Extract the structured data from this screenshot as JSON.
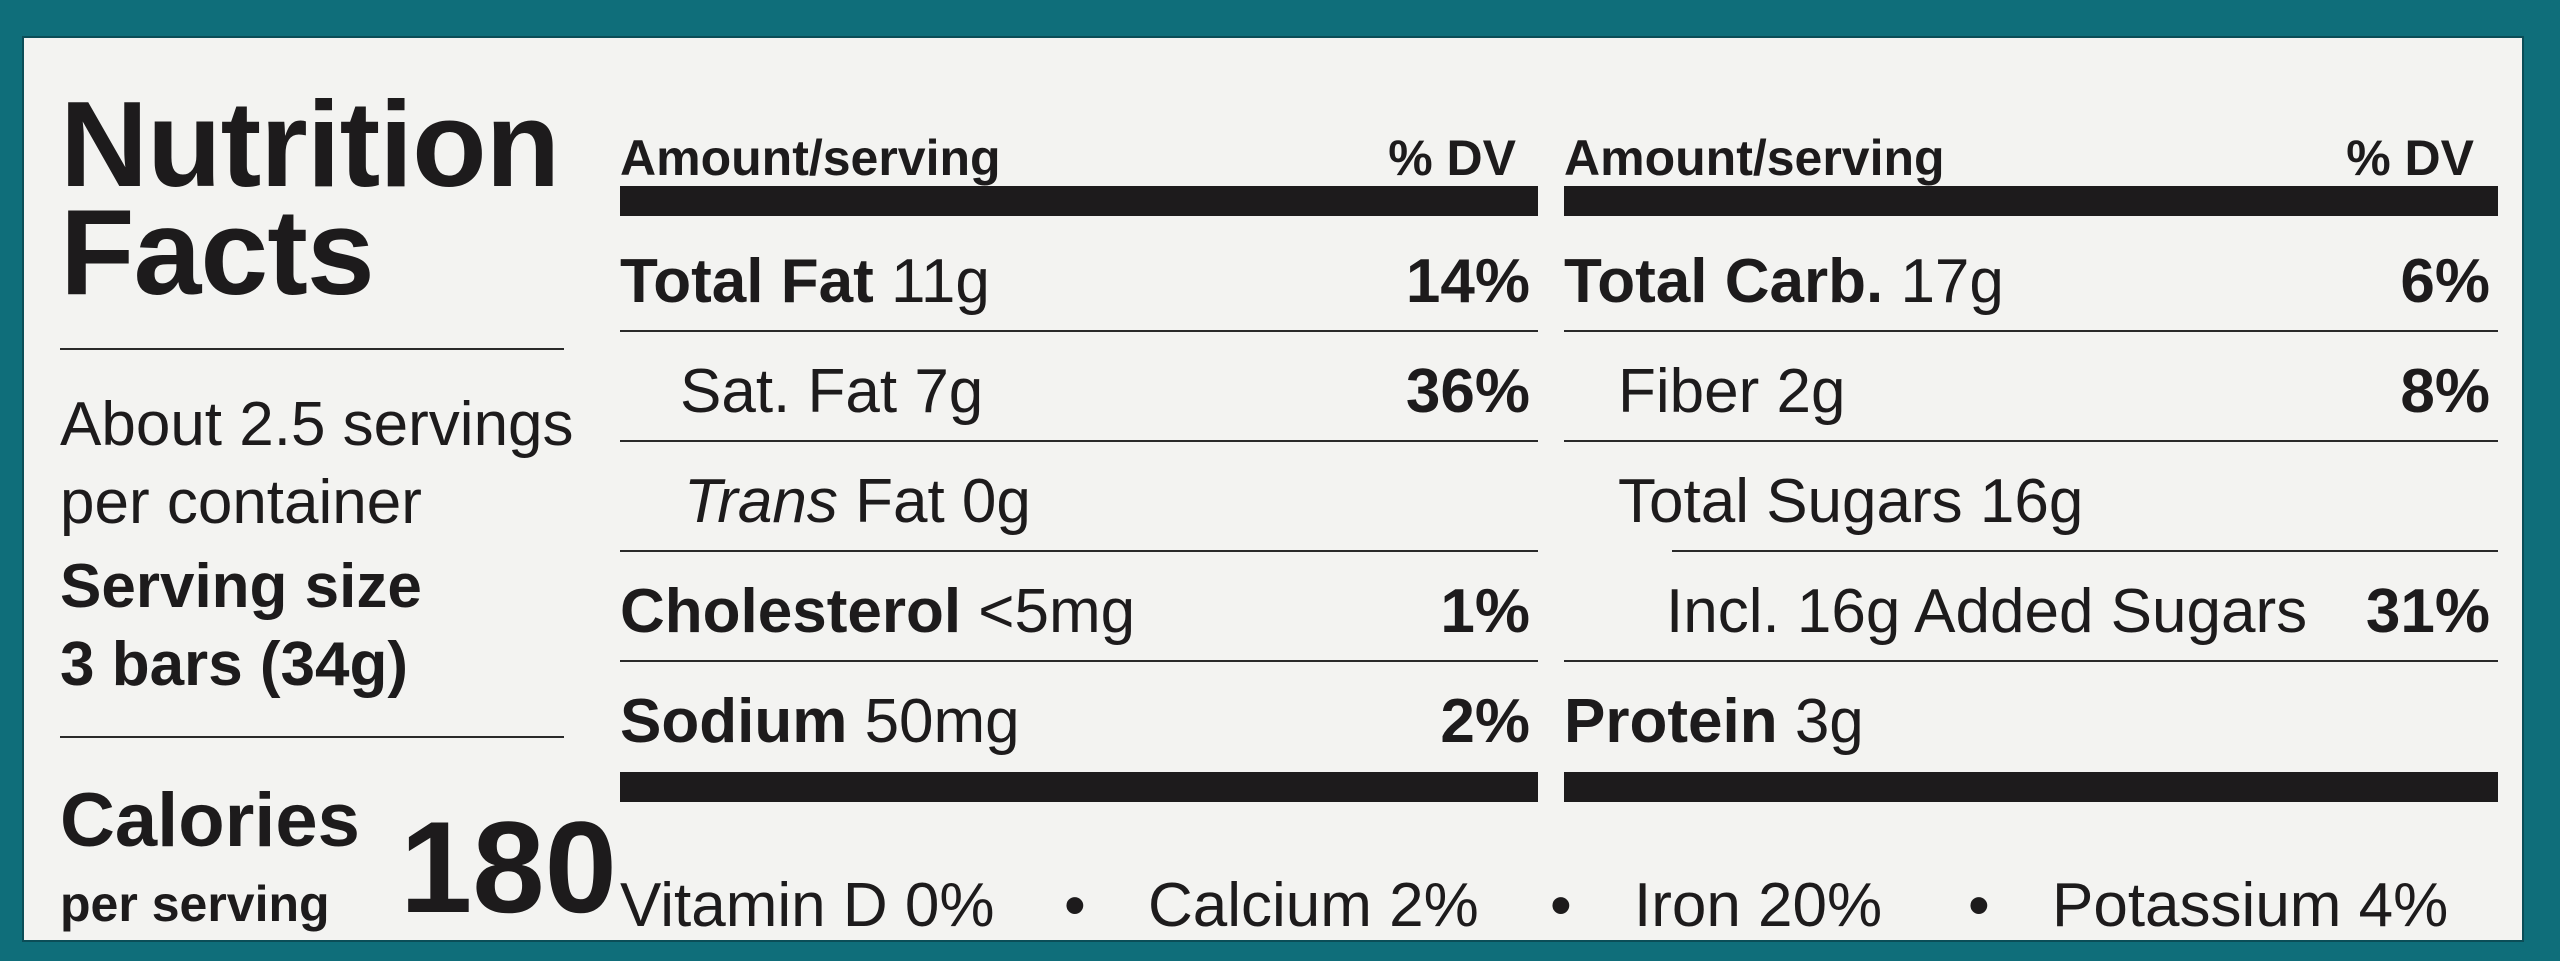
{
  "title_line1": "Nutrition",
  "title_line2": "Facts",
  "servings_line1": "About 2.5 servings",
  "servings_line2": "per container",
  "serving_size_label": "Serving size",
  "serving_size_value": "3 bars (34g)",
  "calories_label": "Calories",
  "calories_sub": "per serving",
  "calories_value": "180",
  "left_col": {
    "header_amount": "Amount/serving",
    "header_dv": "% DV",
    "total_fat_label": "Total Fat",
    "total_fat_amount": "11g",
    "total_fat_dv": "14%",
    "sat_fat_label": "Sat. Fat 7g",
    "sat_fat_dv": "36%",
    "trans_fat_italic": "Trans",
    "trans_fat_rest": "Fat 0g",
    "cholesterol_label": "Cholesterol",
    "cholesterol_amount": "<5mg",
    "cholesterol_dv": "1%",
    "sodium_label": "Sodium",
    "sodium_amount": "50mg",
    "sodium_dv": "2%"
  },
  "right_col": {
    "header_amount": "Amount/serving",
    "header_dv": "% DV",
    "total_carb_label": "Total Carb.",
    "total_carb_amount": "17g",
    "total_carb_dv": "6%",
    "fiber_label": "Fiber 2g",
    "fiber_dv": "8%",
    "total_sugars_label": "Total Sugars 16g",
    "added_sugars_label": "Incl. 16g Added Sugars",
    "added_sugars_dv": "31%",
    "protein_label": "Protein",
    "protein_amount": "3g"
  },
  "vitamins": {
    "vitamin_d": "Vitamin D 0%",
    "calcium": "Calcium 2%",
    "iron": "Iron 20%",
    "potassium": "Potassium 4%",
    "separator": "•"
  }
}
